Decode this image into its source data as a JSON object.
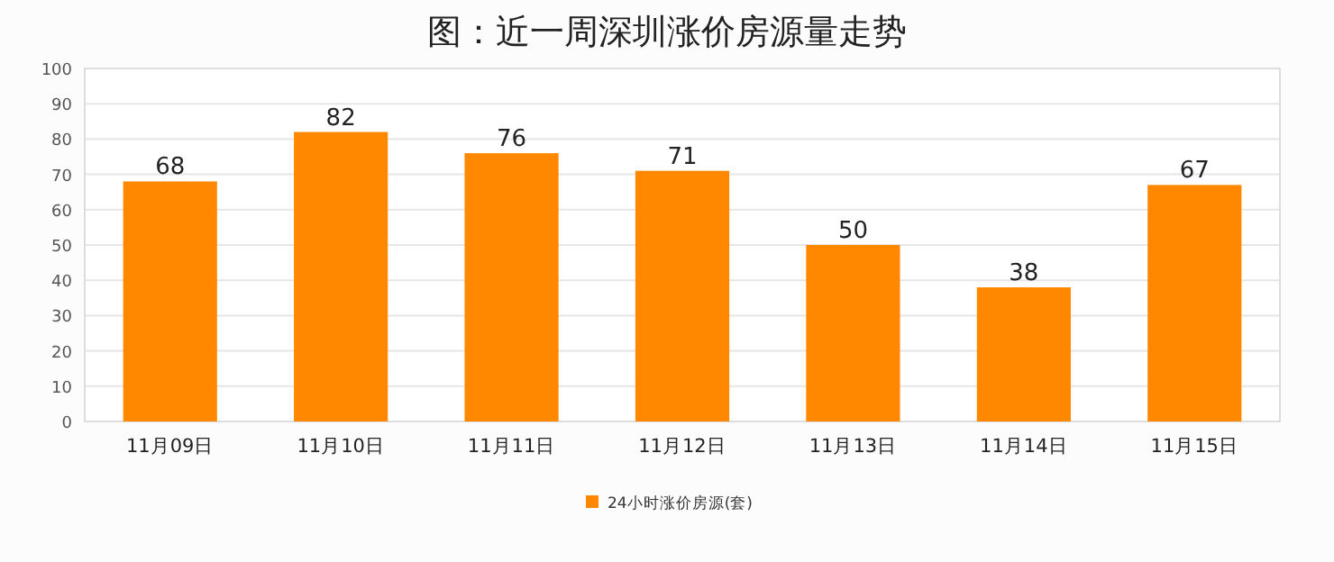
{
  "chart_data": {
    "type": "bar",
    "title": "图：近一周深圳涨价房源量走势",
    "categories": [
      "11月09日",
      "11月10日",
      "11月11日",
      "11月12日",
      "11月13日",
      "11月14日",
      "11月15日"
    ],
    "series": [
      {
        "name": "24小时涨价房源(套)",
        "color": "#ff8800",
        "values": [
          68,
          82,
          76,
          71,
          50,
          38,
          67
        ]
      }
    ],
    "ylim": [
      0,
      100
    ],
    "yticks": [
      0,
      10,
      20,
      30,
      40,
      50,
      60,
      70,
      80,
      90,
      100
    ],
    "grid": "y",
    "legend": "bottom",
    "data_labels": true
  }
}
